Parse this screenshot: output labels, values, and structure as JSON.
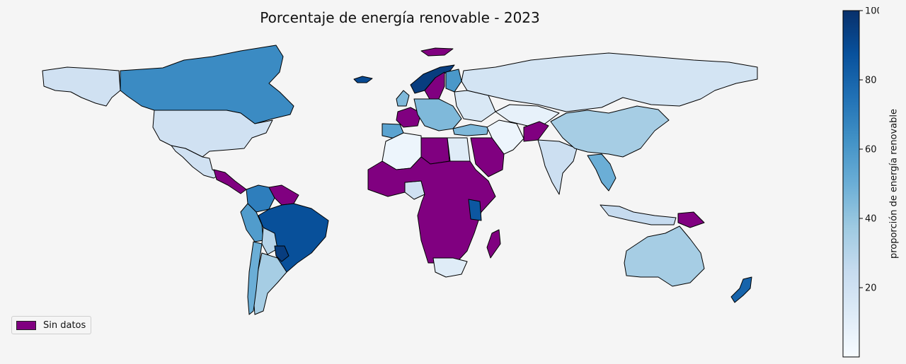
{
  "title": "Porcentaje de energía renovable - 2023",
  "legend": {
    "label": "Sin datos",
    "color": "#800080"
  },
  "colorbar": {
    "label": "proporción de energía renovable",
    "min": 0,
    "max": 100,
    "ticks": [
      20,
      40,
      60,
      80,
      100
    ],
    "colormap": "Blues",
    "stops": [
      "#f7fbff",
      "#deebf7",
      "#c6dbef",
      "#9ecae1",
      "#6baed6",
      "#4292c6",
      "#2171b5",
      "#08519c",
      "#08306b"
    ]
  },
  "regions": [
    {
      "name": "Alaska",
      "value": 20
    },
    {
      "name": "Canada",
      "value": 65
    },
    {
      "name": "Greenland",
      "value": null
    },
    {
      "name": "United States",
      "value": 20
    },
    {
      "name": "Mexico",
      "value": 20
    },
    {
      "name": "Central America",
      "value": null
    },
    {
      "name": "Colombia",
      "value": 70
    },
    {
      "name": "Venezuela",
      "value": null
    },
    {
      "name": "Brazil",
      "value": 88
    },
    {
      "name": "Peru",
      "value": 58
    },
    {
      "name": "Bolivia",
      "value": 30
    },
    {
      "name": "Paraguay",
      "value": 95
    },
    {
      "name": "Argentina",
      "value": 35
    },
    {
      "name": "Chile",
      "value": 50
    },
    {
      "name": "Iceland",
      "value": 90
    },
    {
      "name": "Norway",
      "value": 95
    },
    {
      "name": "Sweden",
      "value": null
    },
    {
      "name": "Finland",
      "value": 60
    },
    {
      "name": "United Kingdom",
      "value": 45
    },
    {
      "name": "France",
      "value": null
    },
    {
      "name": "Spain",
      "value": 55
    },
    {
      "name": "Central Europe",
      "value": 45
    },
    {
      "name": "Eastern Europe",
      "value": 15
    },
    {
      "name": "Russia",
      "value": 18
    },
    {
      "name": "Turkey",
      "value": 45
    },
    {
      "name": "North Africa",
      "value": 5
    },
    {
      "name": "Libya",
      "value": null
    },
    {
      "name": "Egypt",
      "value": 12
    },
    {
      "name": "Arabian Peninsula",
      "value": null
    },
    {
      "name": "Middle East",
      "value": 5
    },
    {
      "name": "Central Asia",
      "value": 8
    },
    {
      "name": "Afghanistan",
      "value": null
    },
    {
      "name": "India",
      "value": 22
    },
    {
      "name": "China",
      "value": 35
    },
    {
      "name": "Southeast Asia",
      "value": 50
    },
    {
      "name": "Nigeria",
      "value": 20
    },
    {
      "name": "Central Africa",
      "value": null
    },
    {
      "name": "Kenya",
      "value": 85
    },
    {
      "name": "South Africa",
      "value": 12
    },
    {
      "name": "Madagascar",
      "value": null
    },
    {
      "name": "Indonesia",
      "value": 25
    },
    {
      "name": "Papua New Guinea",
      "value": null
    },
    {
      "name": "Australia",
      "value": 35
    },
    {
      "name": "New Zealand",
      "value": 80
    }
  ]
}
